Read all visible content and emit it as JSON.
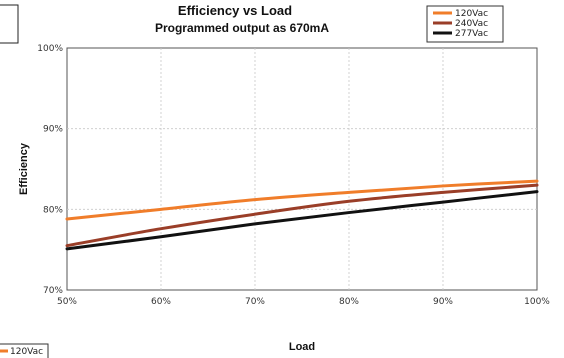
{
  "chart_data": {
    "type": "line",
    "title": "Efficiency vs Load",
    "subtitle": "Programmed output as 670mA",
    "xlabel": "Load",
    "ylabel": "Efficiency",
    "x": [
      50,
      60,
      70,
      80,
      90,
      100
    ],
    "x_tick_labels": [
      "50%",
      "60%",
      "70%",
      "80%",
      "90%",
      "100%"
    ],
    "y_tick_labels": [
      "70%",
      "80%",
      "90%",
      "100%"
    ],
    "y_ticks": [
      70,
      80,
      90,
      100
    ],
    "xlim": [
      50,
      100
    ],
    "ylim": [
      70,
      100
    ],
    "grid": true,
    "legend_position": "top-right",
    "series": [
      {
        "name": "120Vac",
        "color": "#f07d2a",
        "values": [
          78.8,
          80.0,
          81.2,
          82.1,
          82.9,
          83.5
        ]
      },
      {
        "name": "240Vac",
        "color": "#9a3e28",
        "values": [
          75.5,
          77.6,
          79.4,
          81.0,
          82.1,
          83.0
        ]
      },
      {
        "name": "277Vac",
        "color": "#111111",
        "values": [
          75.1,
          76.6,
          78.2,
          79.6,
          80.9,
          82.2
        ]
      }
    ],
    "bottom_legend_visible_entry": "120Vac"
  }
}
